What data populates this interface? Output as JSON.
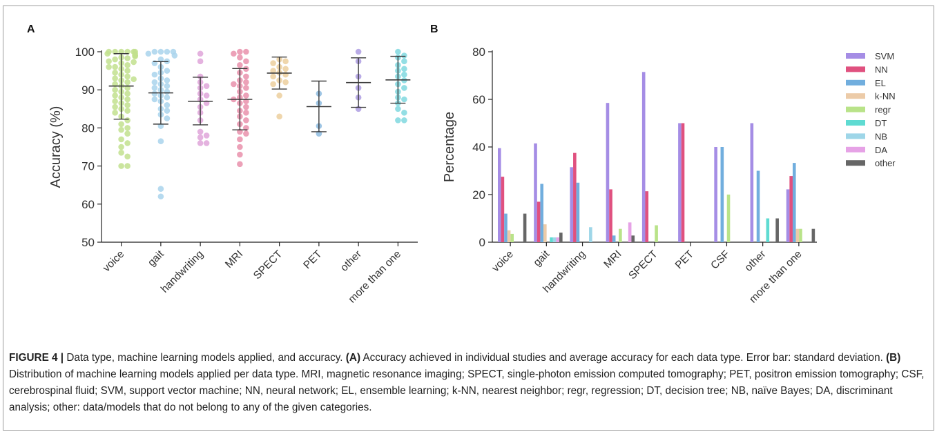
{
  "chart_data": [
    {
      "panel": "A",
      "type": "scatter",
      "ylabel": "Accuracy (%)",
      "ylim": [
        50,
        100
      ],
      "yticks": [
        50,
        60,
        70,
        80,
        90,
        100
      ],
      "categories": [
        "voice",
        "gait",
        "handwriting",
        "MRI",
        "SPECT",
        "PET",
        "other",
        "more than one"
      ],
      "colors": [
        "#c2e08e",
        "#a9d3ec",
        "#dfa5d9",
        "#e991ac",
        "#eccf9e",
        "#8dbbdf",
        "#ad9ce2",
        "#80d8df"
      ],
      "means": [
        91.0,
        89.2,
        87.0,
        87.5,
        94.4,
        85.6,
        91.9,
        92.6
      ],
      "sd_low": [
        82.3,
        81.0,
        80.8,
        79.5,
        90.2,
        79.0,
        85.4,
        86.5
      ],
      "sd_high": [
        99.5,
        97.4,
        93.3,
        95.6,
        98.6,
        92.3,
        98.4,
        98.8
      ],
      "points": [
        [
          100,
          100,
          100,
          100,
          100,
          100,
          99.5,
          99.5,
          99,
          99,
          98.8,
          98.5,
          98.3,
          98,
          97.5,
          97.3,
          97,
          96.5,
          96,
          96,
          95.5,
          95,
          94.5,
          94,
          93.5,
          93,
          92.8,
          92.5,
          92,
          91.5,
          91,
          90.5,
          90,
          89.5,
          89,
          88.5,
          88,
          87.5,
          87,
          86.5,
          86,
          85.5,
          85,
          84.5,
          84,
          83,
          82,
          81,
          80,
          79.5,
          78.5,
          77,
          76,
          75,
          73.5,
          72.5,
          70,
          70
        ],
        [
          100,
          100,
          100,
          100,
          99.5,
          99,
          98,
          97.5,
          97,
          96,
          95,
          94.5,
          94,
          93,
          92.5,
          92,
          91.5,
          91,
          90.5,
          90,
          89.5,
          89,
          88.5,
          88,
          87.5,
          87,
          86,
          85,
          84.5,
          83.5,
          82.5,
          80.5,
          76.5,
          64,
          62
        ],
        [
          99.5,
          97.5,
          93.5,
          92,
          91,
          90.5,
          89,
          88.5,
          87.5,
          86.5,
          85.5,
          84,
          82,
          79,
          78,
          77.5,
          76,
          76
        ],
        [
          100,
          100,
          99.5,
          98.5,
          97.5,
          96.5,
          95.5,
          94.5,
          93.5,
          92.5,
          92,
          91.5,
          91,
          90.5,
          89.5,
          88.5,
          88,
          87.5,
          87,
          86.5,
          85.5,
          84.5,
          84,
          83,
          82,
          81,
          80,
          79,
          78.5,
          77,
          75,
          73,
          70.5
        ],
        [
          98,
          97.5,
          97,
          96,
          95.5,
          95,
          94.5,
          94,
          93.5,
          92.5,
          92,
          91.5,
          88.5,
          83
        ],
        [
          89,
          86.5,
          80.5,
          78.5
        ],
        [
          100,
          97.5,
          93.5,
          90.5,
          88,
          85
        ],
        [
          100,
          99,
          98.5,
          97.5,
          96.5,
          95.5,
          95,
          94,
          93.5,
          92.5,
          91.5,
          90.5,
          89.5,
          88,
          87.5,
          86.5,
          85,
          84,
          82,
          82
        ]
      ]
    },
    {
      "panel": "B",
      "type": "bar",
      "ylabel": "Percentage",
      "ylim": [
        0,
        80
      ],
      "yticks": [
        0,
        20,
        40,
        60,
        80
      ],
      "categories": [
        "voice",
        "gait",
        "handwriting",
        "MRI",
        "SPECT",
        "PET",
        "CSF",
        "other",
        "more than one"
      ],
      "series": [
        {
          "name": "SVM",
          "color": "#a58de5",
          "values": [
            39.5,
            41.5,
            31.5,
            58.5,
            71.5,
            50,
            40,
            50,
            22.2
          ]
        },
        {
          "name": "NN",
          "color": "#e0517f",
          "values": [
            27.5,
            17,
            37.5,
            22.2,
            21.4,
            50,
            0,
            0,
            27.8
          ]
        },
        {
          "name": "EL",
          "color": "#71aede",
          "values": [
            12,
            24.5,
            25,
            2.8,
            0,
            0,
            40,
            30,
            33.3
          ]
        },
        {
          "name": "k-NN",
          "color": "#eccba8",
          "values": [
            5,
            7.5,
            0,
            0,
            0,
            0,
            0,
            0,
            5.6
          ]
        },
        {
          "name": "regr",
          "color": "#b9e389",
          "values": [
            3.5,
            0,
            0,
            5.6,
            7.1,
            0,
            20,
            0,
            5.6
          ]
        },
        {
          "name": "DT",
          "color": "#5fdbd2",
          "values": [
            0,
            2,
            0,
            0,
            0,
            0,
            0,
            10,
            0
          ]
        },
        {
          "name": "NB",
          "color": "#9ed6e8",
          "values": [
            0,
            2,
            6.3,
            0,
            0,
            0,
            0,
            0,
            0
          ]
        },
        {
          "name": "DA",
          "color": "#e6a2e6",
          "values": [
            0,
            2,
            0,
            8.3,
            0,
            0,
            0,
            0,
            0
          ]
        },
        {
          "name": "other",
          "color": "#666666",
          "values": [
            12,
            4,
            0,
            2.8,
            0,
            0,
            0,
            10,
            5.6
          ]
        }
      ]
    }
  ],
  "panels": {
    "a_label": "A",
    "b_label": "B"
  },
  "caption": {
    "fig_label": "FIGURE 4 |",
    "text1": " Data type, machine learning models applied, and accuracy. ",
    "a_ref": "(A)",
    "text2": " Accuracy achieved in individual studies and average accuracy for each data type. Error bar: standard deviation. ",
    "b_ref": "(B)",
    "text3": " Distribution of machine learning models applied per data type. MRI, magnetic resonance imaging; SPECT, single-photon emission computed tomography; PET, positron emission tomography; CSF, cerebrospinal fluid; SVM, support vector machine; NN, neural network; EL, ensemble learning; k-NN, nearest neighbor; regr, regression; DT, decision tree; NB, naïve Bayes; DA, discriminant analysis; other: data/models that do not belong to any of the given categories."
  }
}
